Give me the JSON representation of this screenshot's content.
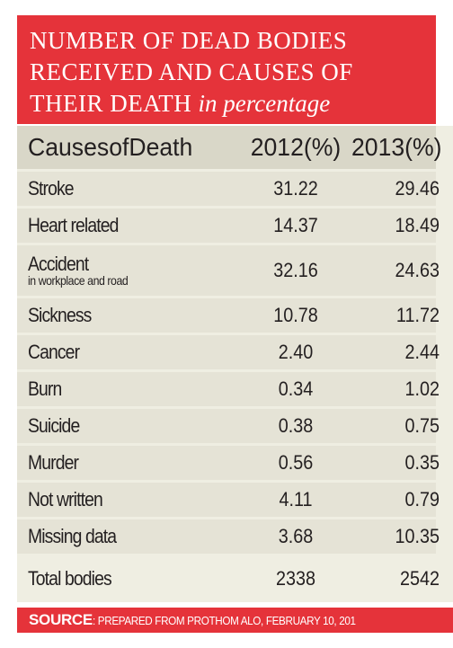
{
  "title": {
    "lines": [
      "NUMBER OF DEAD BODIES",
      "RECEIVED AND CAUSES OF",
      "THEIR DEATH"
    ],
    "emphasis": "in percentage"
  },
  "source": {
    "label": "SOURCE",
    "text": ": PREPARED FROM PROTHOM ALO, FEBRUARY 10, 201"
  },
  "colors": {
    "accent": "#e5333a",
    "header_bg": "#d9d7c8",
    "row_alt": "#e5e3d6",
    "row_bg": "#efeee2"
  },
  "chart_data": {
    "type": "table",
    "columns": [
      "CausesofDeath",
      "2012(%)",
      "2013(%)"
    ],
    "rows": [
      {
        "cause": "Stroke",
        "y2012": "31.22",
        "y2013": "29.46"
      },
      {
        "cause": "Heart related",
        "y2012": "14.37",
        "y2013": "18.49"
      },
      {
        "cause": "Accident",
        "sub": "in workplace and road",
        "y2012": "32.16",
        "y2013": "24.63"
      },
      {
        "cause": "Sickness",
        "y2012": "10.78",
        "y2013": "11.72"
      },
      {
        "cause": "Cancer",
        "y2012": "2.40",
        "y2013": "2.44"
      },
      {
        "cause": "Burn",
        "y2012": "0.34",
        "y2013": "1.02"
      },
      {
        "cause": "Suicide",
        "y2012": "0.38",
        "y2013": "0.75"
      },
      {
        "cause": "Murder",
        "y2012": "0.56",
        "y2013": "0.35"
      },
      {
        "cause": "Not written",
        "y2012": "4.11",
        "y2013": "0.79"
      },
      {
        "cause": "Missing data",
        "y2012": "3.68",
        "y2013": "10.35"
      },
      {
        "cause": "Total bodies",
        "y2012": "2338",
        "y2013": "2542"
      }
    ]
  }
}
